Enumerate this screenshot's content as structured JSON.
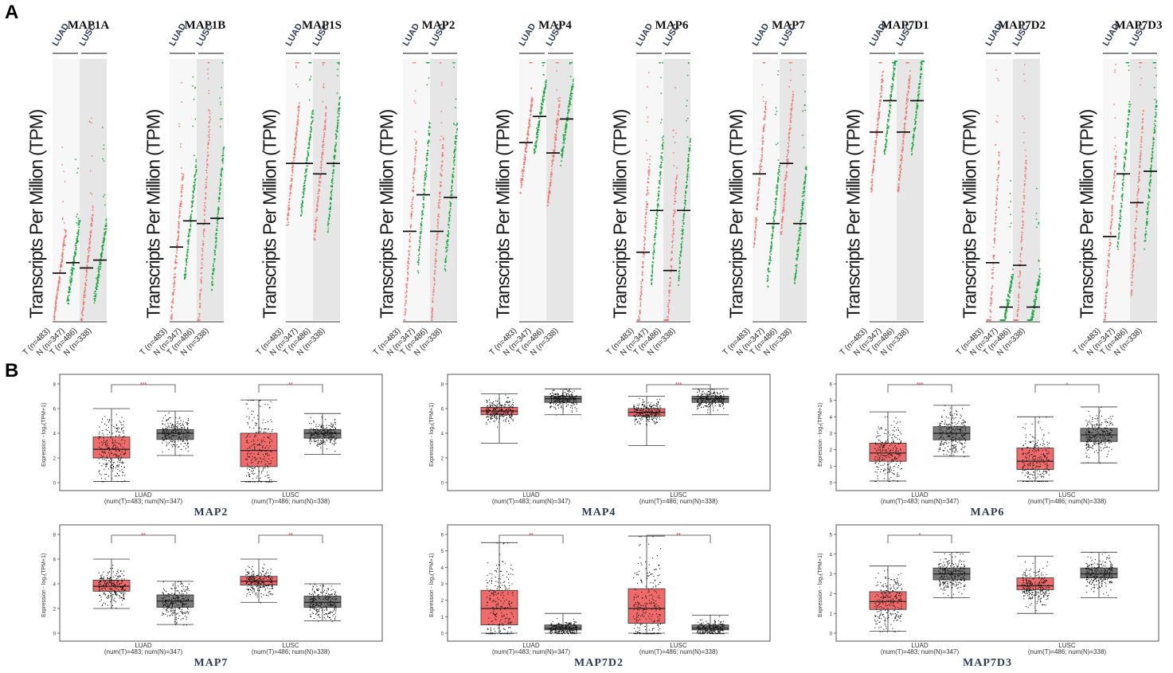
{
  "figure": {
    "panel_a_label": "A",
    "panel_b_label": "B"
  },
  "chart_data": [
    {
      "type": "scatter",
      "panel": "A",
      "description_none": "",
      "ylabel": "Transcripts Per Million (TPM)",
      "column_headers": [
        "LUAD",
        "LUSC"
      ],
      "group_labels": [
        "T (n=483)",
        "N (n=347)",
        "T (n=486)",
        "N (n=338)"
      ],
      "series_colors": {
        "tumor": "#f0756f",
        "normal": "#16a83c"
      },
      "genes": [
        {
          "name": "MAP1A",
          "medians": [
            0.18,
            0.22,
            0.2,
            0.23
          ],
          "spread": [
            0.35,
            0.3,
            0.45,
            0.3
          ]
        },
        {
          "name": "MAP1B",
          "medians": [
            0.28,
            0.38,
            0.37,
            0.39
          ],
          "spread": [
            0.55,
            0.45,
            0.85,
            0.55
          ]
        },
        {
          "name": "MAP1S",
          "medians": [
            0.6,
            0.6,
            0.56,
            0.6
          ],
          "spread": [
            0.45,
            0.4,
            0.5,
            0.5
          ]
        },
        {
          "name": "MAP2",
          "medians": [
            0.34,
            0.48,
            0.34,
            0.47
          ],
          "spread": [
            0.7,
            0.55,
            0.7,
            0.55
          ]
        },
        {
          "name": "MAP4",
          "medians": [
            0.68,
            0.78,
            0.64,
            0.77
          ],
          "spread": [
            0.35,
            0.28,
            0.4,
            0.3
          ]
        },
        {
          "name": "MAP6",
          "medians": [
            0.26,
            0.42,
            0.19,
            0.42
          ],
          "spread": [
            0.7,
            0.55,
            0.75,
            0.55
          ]
        },
        {
          "name": "MAP7",
          "medians": [
            0.56,
            0.37,
            0.6,
            0.37
          ],
          "spread": [
            0.55,
            0.45,
            0.55,
            0.45
          ]
        },
        {
          "name": "MAP7D1",
          "medians": [
            0.72,
            0.84,
            0.72,
            0.84
          ],
          "spread": [
            0.45,
            0.4,
            0.45,
            0.4
          ]
        },
        {
          "name": "MAP7D2",
          "medians": [
            0.22,
            0.05,
            0.21,
            0.05
          ],
          "spread": [
            0.85,
            0.25,
            0.85,
            0.25
          ]
        },
        {
          "name": "MAP7D3",
          "medians": [
            0.32,
            0.56,
            0.45,
            0.57
          ],
          "spread": [
            0.65,
            0.55,
            0.7,
            0.55
          ]
        }
      ]
    },
    {
      "type": "box",
      "panel": "B",
      "ylabel": "Expression - log₂(TPM+1)",
      "groups": [
        "LUAD",
        "LUSC"
      ],
      "group_counts": [
        "(num(T)=483; num(N)=347)",
        "(num(T)=486; num(N)=338)"
      ],
      "colors": {
        "tumor": "#f06a6a",
        "normal": "#7a7a7a"
      },
      "significance_color": "#e02020",
      "plots": [
        {
          "gene": "MAP2",
          "ylim": [
            0,
            8
          ],
          "yticks": [
            0,
            2,
            4,
            6,
            8
          ],
          "sig": [
            "***",
            "**"
          ],
          "boxes": [
            [
              0.1,
              2.0,
              2.7,
              3.7,
              6.0
            ],
            [
              2.2,
              3.5,
              4.0,
              4.3,
              5.8
            ],
            [
              0.1,
              1.3,
              2.6,
              4.0,
              6.7
            ],
            [
              2.3,
              3.6,
              4.0,
              4.3,
              5.6
            ]
          ]
        },
        {
          "gene": "MAP4",
          "ylim": [
            0,
            8
          ],
          "yticks": [
            0,
            2,
            4,
            6,
            8
          ],
          "sig": [
            "",
            "***"
          ],
          "boxes": [
            [
              3.2,
              5.5,
              5.8,
              6.1,
              7.2
            ],
            [
              5.5,
              6.5,
              6.8,
              7.0,
              7.6
            ],
            [
              3.0,
              5.4,
              5.7,
              6.0,
              7.0
            ],
            [
              5.5,
              6.5,
              6.8,
              7.0,
              7.6
            ]
          ]
        },
        {
          "gene": "MAP6",
          "ylim": [
            0,
            6
          ],
          "yticks": [
            0,
            1,
            2,
            3,
            4,
            5,
            6
          ],
          "sig": [
            "***",
            "*"
          ],
          "boxes": [
            [
              0.1,
              1.3,
              1.8,
              2.4,
              4.3
            ],
            [
              1.6,
              2.6,
              3.0,
              3.4,
              4.7
            ],
            [
              0.1,
              0.8,
              1.3,
              2.1,
              4.0
            ],
            [
              1.2,
              2.5,
              2.9,
              3.3,
              4.6
            ]
          ]
        },
        {
          "gene": "MAP7",
          "ylim": [
            0,
            8
          ],
          "yticks": [
            0,
            2,
            4,
            6,
            8
          ],
          "sig": [
            "**",
            "**"
          ],
          "boxes": [
            [
              2.0,
              3.4,
              3.8,
              4.3,
              6.0
            ],
            [
              0.7,
              2.1,
              2.6,
              3.1,
              4.2
            ],
            [
              2.5,
              3.9,
              4.2,
              4.6,
              6.0
            ],
            [
              1.0,
              2.1,
              2.5,
              3.0,
              4.0
            ]
          ]
        },
        {
          "gene": "MAP7D2",
          "ylim": [
            0,
            6
          ],
          "yticks": [
            0,
            1,
            2,
            3,
            4,
            5,
            6
          ],
          "sig": [
            "**",
            "**"
          ],
          "boxes": [
            [
              0.0,
              0.5,
              1.5,
              2.6,
              5.5
            ],
            [
              0.0,
              0.2,
              0.3,
              0.5,
              1.2
            ],
            [
              0.0,
              0.6,
              1.5,
              2.7,
              5.9
            ],
            [
              0.0,
              0.2,
              0.3,
              0.5,
              1.1
            ]
          ]
        },
        {
          "gene": "MAP7D3",
          "ylim": [
            0,
            5
          ],
          "yticks": [
            0,
            1,
            2,
            3,
            4,
            5
          ],
          "sig": [
            "*",
            ""
          ],
          "boxes": [
            [
              0.1,
              1.2,
              1.6,
              2.1,
              3.4
            ],
            [
              1.8,
              2.7,
              3.0,
              3.3,
              4.1
            ],
            [
              1.0,
              2.2,
              2.4,
              2.8,
              3.9
            ],
            [
              1.8,
              2.8,
              3.0,
              3.3,
              4.1
            ]
          ]
        }
      ]
    }
  ]
}
